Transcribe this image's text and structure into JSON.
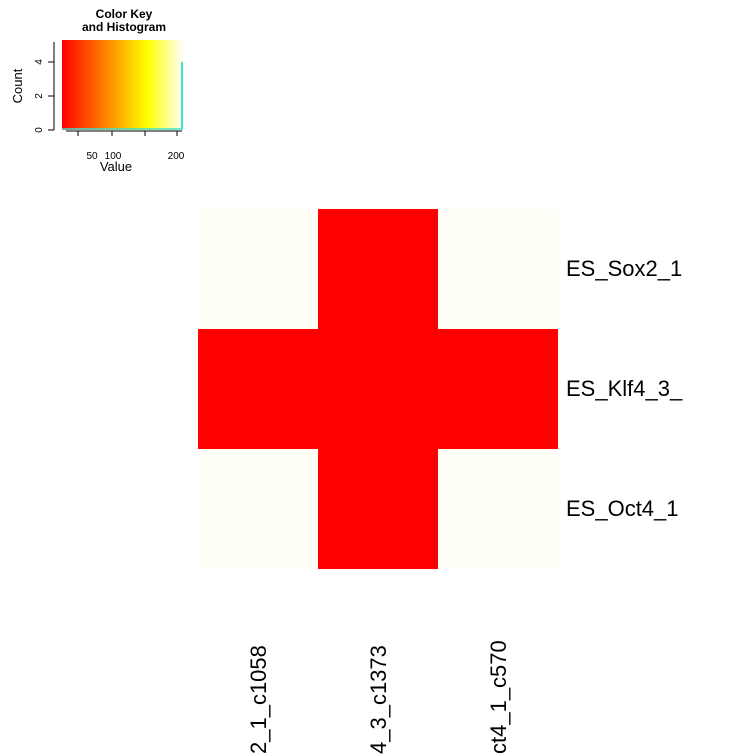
{
  "color_key": {
    "title_line1": "Color Key",
    "title_line2": "and Histogram",
    "ylabel": "Count",
    "xlabel": "Value",
    "x_ticks": [
      "50",
      "100",
      "200"
    ],
    "y_ticks": [
      "0",
      "2",
      "4"
    ],
    "gradient_colors": [
      "#ff0000",
      "#ff8000",
      "#ffff00",
      "#ffffff"
    ],
    "histogram_color": "#40e0d0"
  },
  "chart_data": {
    "type": "heatmap",
    "rows": [
      "ES_Sox2_1",
      "ES_Klf4_3_",
      "ES_Oct4_1"
    ],
    "cols": [
      "2_1_c1058",
      "4_3_c1373",
      "ct4_1_c570"
    ],
    "values": [
      [
        null,
        30,
        null
      ],
      [
        30,
        30,
        30
      ],
      [
        null,
        30,
        null
      ]
    ],
    "cell_colors": {
      "high": "#ff0000",
      "empty": "#fffff8"
    },
    "color_key_range": [
      30,
      210
    ]
  }
}
